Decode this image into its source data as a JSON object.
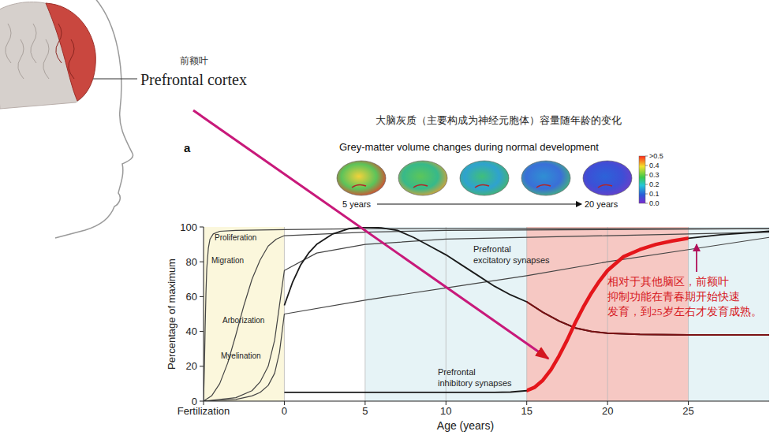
{
  "illustration": {
    "label_cn": "前额叶",
    "label_en": "Prefrontal cortex"
  },
  "chart_data": {
    "type": "line",
    "title": "大脑灰质（主要构成为神经元胞体）容量随年龄的变化",
    "panel": "a",
    "subtitle": "Grey-matter volume changes during normal development",
    "brain_maps": {
      "start_label": "5 years",
      "end_label": "20 years",
      "colorbar": {
        "range": [
          0,
          0.5
        ],
        "ticks": [
          {
            "value": 0.5,
            "label": ">0.5"
          },
          0.4,
          0.3,
          0.2,
          0.1,
          {
            "value": 0,
            "label": "0.0"
          }
        ]
      }
    },
    "x_label": "Age (years)",
    "y_label": "Percentage of maximum",
    "xlim": [
      -5,
      30
    ],
    "xticks": [
      {
        "value": -5,
        "label": "Fertilization"
      },
      0,
      5,
      10,
      15,
      20,
      25
    ],
    "ylim": [
      0,
      100
    ],
    "yticks": [
      0,
      20,
      40,
      60,
      80,
      100
    ],
    "grid": true,
    "bands": [
      {
        "x0": -5,
        "x1": 0,
        "color": "#fbf7dc"
      },
      {
        "x0": 5,
        "x1": 15,
        "color": "#e6f3f6"
      },
      {
        "x0": 15,
        "x1": 25,
        "color": "#f6c8c3"
      },
      {
        "x0": 25,
        "x1": 30,
        "color": "#e6f3f6"
      }
    ],
    "series": [
      {
        "name": "Proliferation",
        "color": "#444444",
        "x": [
          -5,
          -4.95,
          -4.9,
          -4.85,
          -4.8,
          -4.7,
          -4.6,
          -4.4,
          -4,
          -3,
          0,
          5,
          10,
          20,
          30
        ],
        "values": [
          0,
          18,
          42,
          62,
          76,
          88,
          93,
          96,
          97.5,
          98,
          98.5,
          99,
          99,
          99,
          99
        ]
      },
      {
        "name": "Migration",
        "color": "#444444",
        "x": [
          -5,
          -4.5,
          -4,
          -3.5,
          -3,
          -2.5,
          -2,
          -1.5,
          -1,
          -0.5,
          0,
          5,
          10,
          20,
          30
        ],
        "values": [
          0,
          3,
          10,
          22,
          38,
          55,
          70,
          81,
          89,
          93,
          95,
          97,
          98,
          98.5,
          99
        ]
      },
      {
        "name": "Arborization",
        "color": "#444444",
        "x": [
          -5,
          -3,
          -2,
          -1.5,
          -1,
          -0.6,
          -0.3,
          0,
          2,
          5,
          10,
          20,
          30
        ],
        "values": [
          0,
          2,
          6,
          11,
          20,
          35,
          55,
          75,
          85,
          90,
          93,
          95,
          97
        ]
      },
      {
        "name": "Myelination",
        "color": "#444444",
        "x": [
          -5,
          -3,
          -2,
          -1.5,
          -1,
          -0.6,
          -0.3,
          0,
          5,
          10,
          15,
          20,
          25,
          30
        ],
        "values": [
          0,
          1,
          3,
          5,
          9,
          16,
          28,
          50,
          58,
          65,
          72,
          80,
          87,
          94
        ]
      },
      {
        "name": "Prefrontal excitatory synapses",
        "color": "#1a1a1a",
        "highlight": {
          "x0": 15,
          "x1": 30,
          "color": "#7b1113"
        },
        "x": [
          0,
          0.5,
          1,
          1.5,
          2,
          3,
          4,
          5,
          6,
          7,
          8,
          9,
          10,
          11,
          12,
          13,
          14,
          15,
          16,
          17,
          18,
          19,
          20,
          22,
          25,
          30
        ],
        "values": [
          55,
          68,
          78,
          85,
          90,
          96,
          99,
          100,
          99.5,
          98,
          94,
          89,
          84,
          78,
          72,
          66,
          61,
          57,
          51,
          46,
          42,
          40,
          39,
          38.3,
          38,
          38
        ]
      },
      {
        "name": "Prefrontal inhibitory synapses",
        "color": "#1a1a1a",
        "highlight": {
          "x0": 15,
          "x1": 25,
          "color": "#e4161b"
        },
        "x": [
          0,
          5,
          10,
          13,
          14,
          15,
          15.5,
          16,
          16.5,
          17,
          17.5,
          18,
          18.5,
          19,
          19.5,
          20,
          21,
          22,
          23,
          24,
          25,
          27,
          30
        ],
        "values": [
          5,
          5,
          5,
          5,
          5.2,
          6,
          8,
          12,
          18,
          26,
          35,
          45,
          54,
          62,
          69,
          75,
          83,
          87,
          90,
          92,
          93.5,
          95.5,
          97.5
        ]
      }
    ],
    "annotation": [
      "相对于其他脑区，前额叶",
      "抑制功能在青春期开始快速",
      "发育，到25岁左右才发育成熟。"
    ]
  }
}
